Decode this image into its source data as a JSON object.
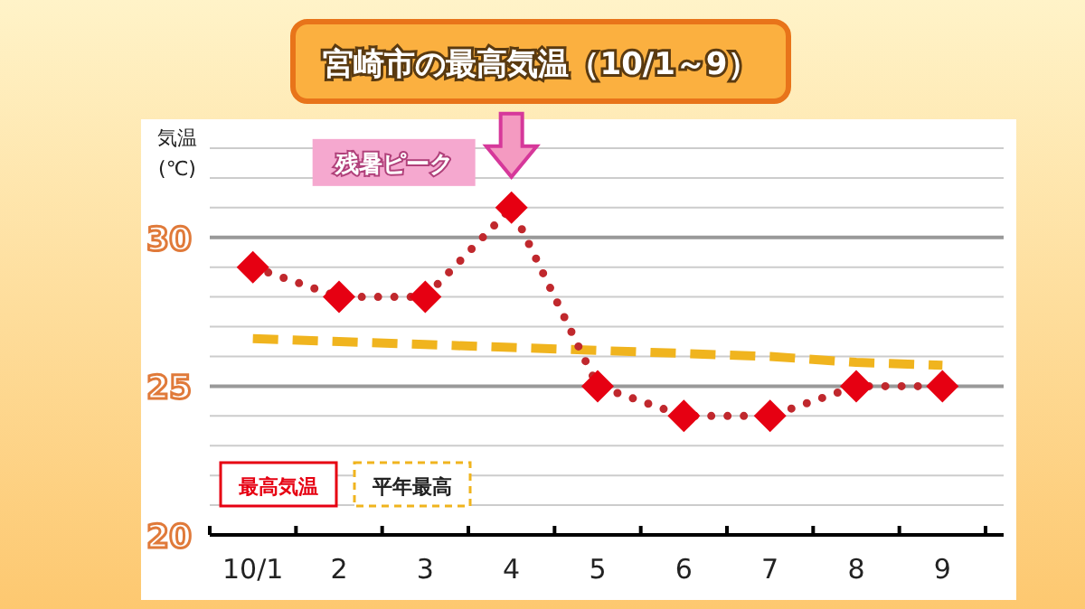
{
  "chart_data": {
    "type": "line",
    "title": "宮崎市の最高気温（10/1～9）",
    "ylabel": "気温\n(℃)",
    "categories": [
      "10/1",
      "2",
      "3",
      "4",
      "5",
      "6",
      "7",
      "8",
      "9"
    ],
    "series": [
      {
        "name": "最高気温",
        "color": "#e60012",
        "values": [
          29,
          28,
          28,
          31,
          25,
          24,
          24,
          25,
          25
        ],
        "marker": "diamond",
        "line_style": "dotted"
      },
      {
        "name": "平年最高",
        "color": "#f0b41e",
        "values": [
          26.6,
          26.5,
          26.4,
          26.3,
          26.2,
          26.1,
          26.0,
          25.8,
          25.7
        ],
        "marker": "none",
        "line_style": "dashed"
      }
    ],
    "ylim": [
      20,
      33
    ],
    "yticks": [
      20,
      {
        "value": 21,
        "label": null
      },
      {
        "value": 22,
        "label": null
      },
      {
        "value": 23,
        "label": null
      },
      {
        "value": 24,
        "label": null
      },
      25,
      {
        "value": 26,
        "label": null
      },
      {
        "value": 27,
        "label": null
      },
      {
        "value": 28,
        "label": null
      },
      {
        "value": 29,
        "label": null
      },
      30,
      {
        "value": 31,
        "label": null
      },
      {
        "value": 32,
        "label": null
      },
      {
        "value": 33,
        "label": null
      }
    ],
    "grid": "y",
    "legend": "bottom left",
    "annotations": [
      {
        "text": "残暑ピーク",
        "x": "4",
        "y": 31
      }
    ]
  }
}
